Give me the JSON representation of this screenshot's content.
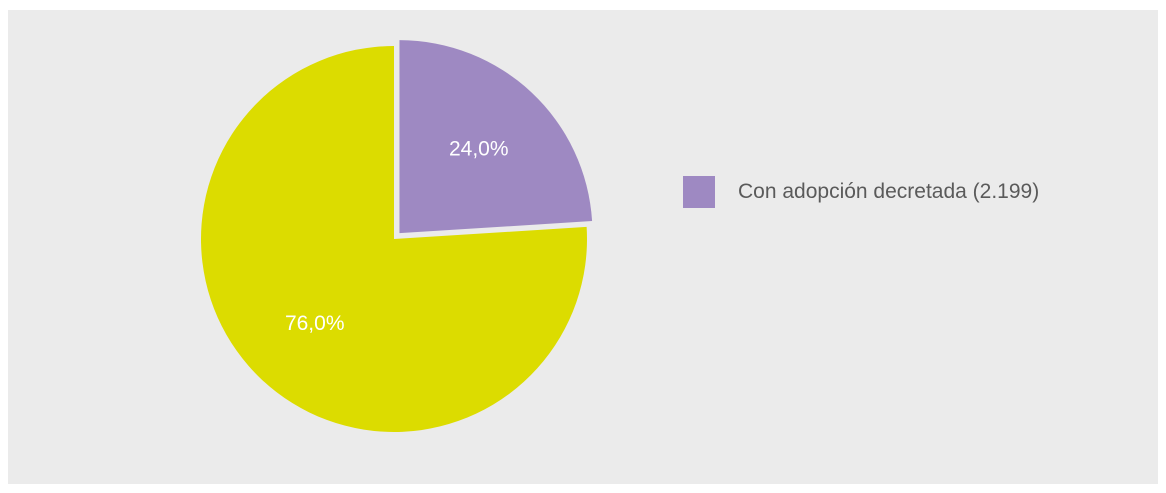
{
  "chart_data": {
    "type": "pie",
    "slices": [
      {
        "label": "Con adopción decretada (2.199)",
        "value": 24.0,
        "display": "24,0%",
        "color": "#9e89c2",
        "exploded": true
      },
      {
        "label": "",
        "value": 76.0,
        "display": "76,0%",
        "color": "#dcdc00",
        "exploded": false
      }
    ],
    "start_angle_deg": 0,
    "direction": "clockwise",
    "legend": {
      "position": "right",
      "entries": [
        "Con adopción decretada (2.199)"
      ]
    }
  },
  "colors": {
    "panel_background": "#ebebeb",
    "legend_text": "#5a5a5a",
    "slice_label_text": "#ffffff"
  }
}
